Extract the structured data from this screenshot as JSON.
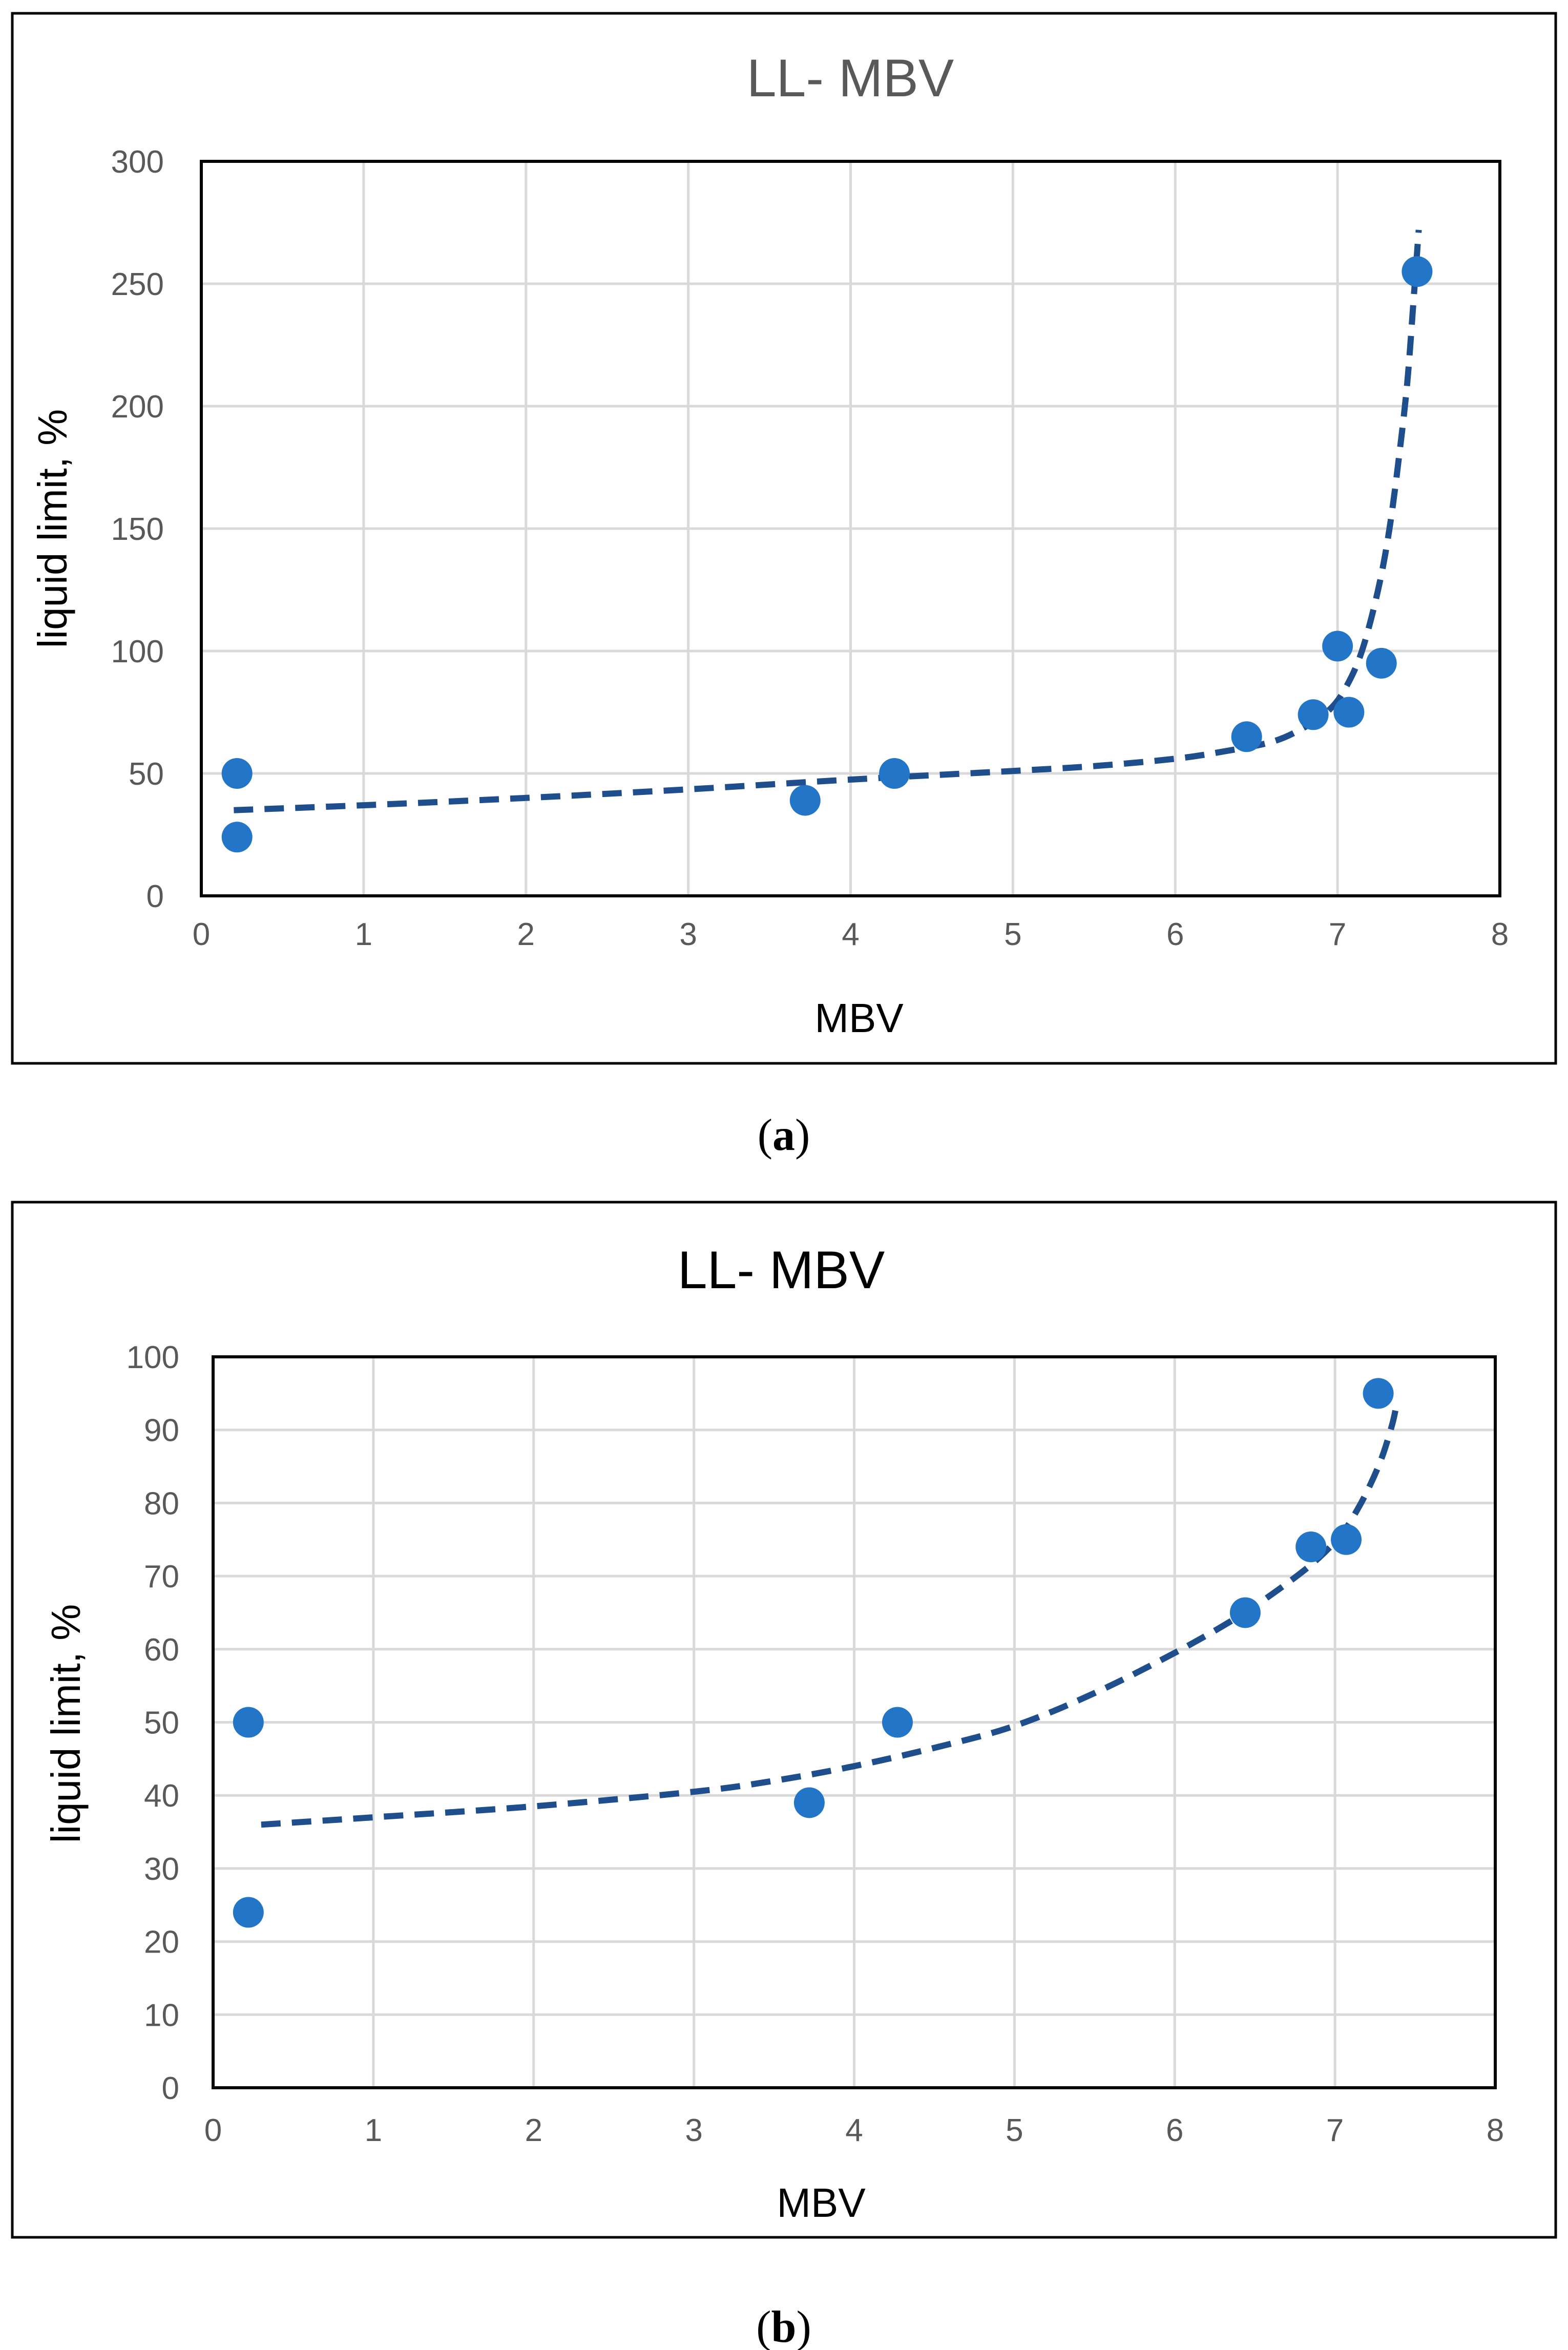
{
  "chart_data": [
    {
      "type": "scatter",
      "panel_label": "a",
      "title": "LL- MBV",
      "xlabel": "MBV",
      "ylabel": "liquid limit, %",
      "xlim": [
        0,
        8
      ],
      "ylim": [
        0,
        300
      ],
      "xticks": [
        "0",
        "1",
        "2",
        "3",
        "4",
        "5",
        "6",
        "7",
        "8"
      ],
      "yticks": [
        "0",
        "50",
        "100",
        "150",
        "200",
        "250",
        "300"
      ],
      "grid": true,
      "series": [
        {
          "name": "LL",
          "color": "#2375c8",
          "x": [
            0.22,
            0.22,
            3.72,
            4.27,
            6.44,
            6.85,
            7.0,
            7.07,
            7.27,
            7.49
          ],
          "y": [
            50,
            24,
            39,
            50,
            65,
            74,
            102,
            75,
            95,
            255
          ]
        }
      ],
      "trendline": {
        "style": "dashed",
        "color": "#1f4e8c",
        "x": [
          0.2,
          1,
          2,
          3,
          4,
          5,
          5.5,
          6,
          6.3,
          6.6,
          6.8,
          6.95,
          7.05,
          7.15,
          7.25,
          7.32,
          7.38,
          7.43,
          7.47,
          7.5
        ],
        "y": [
          35,
          37,
          40,
          43.5,
          47.5,
          51,
          53,
          56,
          59,
          63,
          69,
          76,
          85,
          100,
          125,
          150,
          180,
          210,
          245,
          272
        ]
      }
    },
    {
      "type": "scatter",
      "panel_label": "b",
      "title": "LL- MBV",
      "xlabel": "MBV",
      "ylabel": "liquid limit, %",
      "xlim": [
        0,
        8
      ],
      "ylim": [
        0,
        100
      ],
      "xticks": [
        "0",
        "1",
        "2",
        "3",
        "4",
        "5",
        "6",
        "7",
        "8"
      ],
      "yticks": [
        "0",
        "10",
        "20",
        "30",
        "40",
        "50",
        "60",
        "70",
        "80",
        "90",
        "100"
      ],
      "grid": true,
      "series": [
        {
          "name": "LL",
          "color": "#2375c8",
          "x": [
            0.22,
            0.22,
            3.72,
            4.27,
            6.44,
            6.85,
            7.07,
            7.27
          ],
          "y": [
            50,
            24,
            39,
            50,
            65,
            74,
            75,
            95
          ]
        }
      ],
      "trendline": {
        "style": "dashed",
        "color": "#1f4e8c",
        "x": [
          0.3,
          1,
          2,
          3,
          3.5,
          4,
          4.5,
          5,
          5.5,
          6,
          6.4,
          6.7,
          6.9,
          7.05,
          7.15,
          7.22,
          7.28,
          7.32,
          7.36,
          7.38
        ],
        "y": [
          36,
          37,
          38.5,
          40.5,
          42,
          44,
          46.5,
          49.5,
          54,
          59.5,
          64.5,
          69,
          72.5,
          76,
          79.5,
          82.5,
          85.5,
          88,
          91,
          93
        ]
      }
    }
  ]
}
